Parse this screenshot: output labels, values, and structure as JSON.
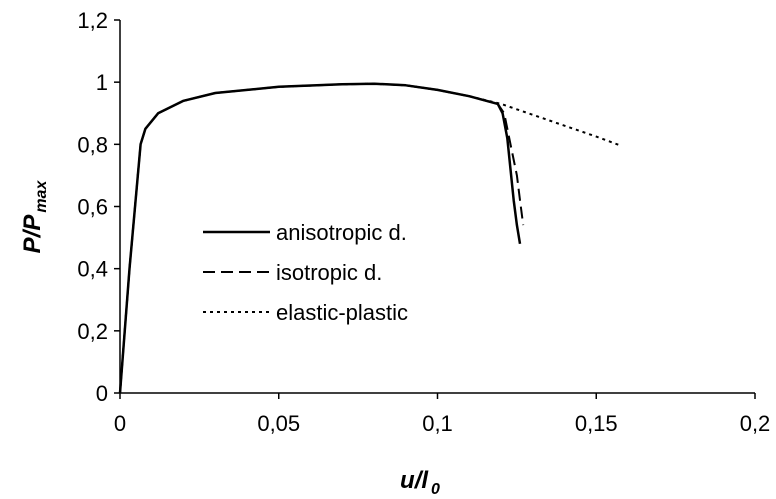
{
  "chart_data": {
    "type": "line",
    "xlabel": "u/l",
    "xlabel_sub": "0",
    "ylabel": "P/P",
    "ylabel_sub": "max",
    "xlim": [
      0,
      0.2
    ],
    "ylim": [
      0,
      1.2
    ],
    "xticks": [
      0,
      0.05,
      0.1,
      0.15,
      0.2
    ],
    "yticks": [
      0,
      0.2,
      0.4,
      0.6,
      0.8,
      1,
      1.2
    ],
    "xtick_labels": [
      "0",
      "0,05",
      "0,1",
      "0,15",
      "0,2"
    ],
    "ytick_labels": [
      "0",
      "0,2",
      "0,4",
      "0,6",
      "0,8",
      "1",
      "1,2"
    ],
    "grid": false,
    "legend_position": "center-left",
    "series": [
      {
        "name": "anisotropic d.",
        "style": "solid",
        "x": [
          0,
          0.003,
          0.0065,
          0.008,
          0.012,
          0.02,
          0.03,
          0.05,
          0.07,
          0.08,
          0.09,
          0.1,
          0.11,
          0.119,
          0.1205,
          0.122,
          0.123,
          0.124,
          0.125,
          0.126
        ],
        "y": [
          0,
          0.4,
          0.8,
          0.85,
          0.9,
          0.94,
          0.965,
          0.985,
          0.993,
          0.995,
          0.99,
          0.975,
          0.955,
          0.93,
          0.9,
          0.82,
          0.72,
          0.62,
          0.54,
          0.48
        ]
      },
      {
        "name": "isotropic d.",
        "style": "dashed",
        "x": [
          0,
          0.003,
          0.0065,
          0.008,
          0.012,
          0.02,
          0.03,
          0.05,
          0.07,
          0.08,
          0.09,
          0.1,
          0.11,
          0.119,
          0.121,
          0.123,
          0.125,
          0.126,
          0.127
        ],
        "y": [
          0,
          0.4,
          0.8,
          0.85,
          0.9,
          0.94,
          0.965,
          0.985,
          0.993,
          0.995,
          0.99,
          0.975,
          0.955,
          0.93,
          0.9,
          0.8,
          0.7,
          0.62,
          0.54
        ]
      },
      {
        "name": "elastic-plastic",
        "style": "dotted",
        "x": [
          0,
          0.003,
          0.0065,
          0.008,
          0.012,
          0.02,
          0.03,
          0.05,
          0.07,
          0.08,
          0.09,
          0.1,
          0.11,
          0.12,
          0.13,
          0.14,
          0.15,
          0.158
        ],
        "y": [
          0,
          0.4,
          0.8,
          0.85,
          0.9,
          0.94,
          0.965,
          0.985,
          0.993,
          0.995,
          0.99,
          0.975,
          0.955,
          0.93,
          0.895,
          0.86,
          0.825,
          0.795
        ]
      }
    ]
  }
}
